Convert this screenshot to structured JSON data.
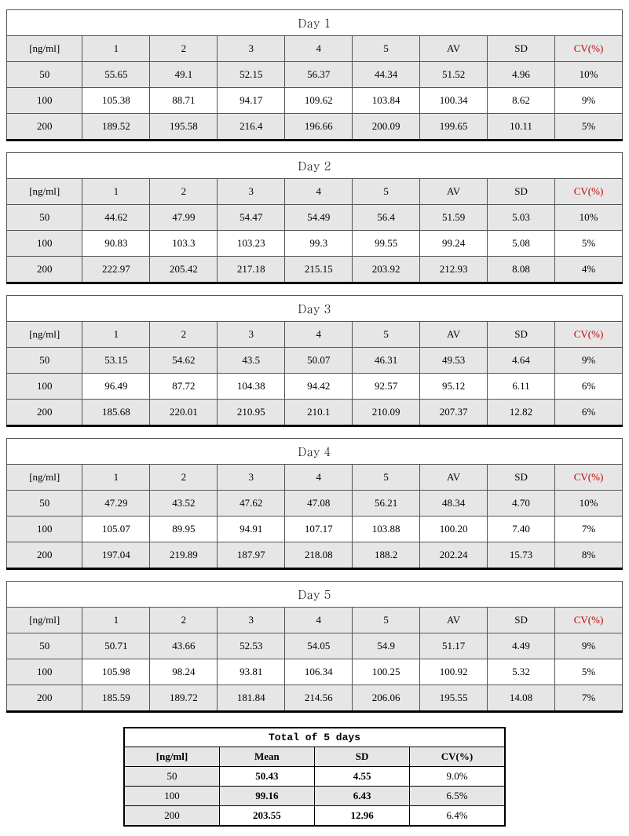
{
  "columns": [
    "[ng/ml]",
    "1",
    "2",
    "3",
    "4",
    "5",
    "AV",
    "SD",
    "CV(%)"
  ],
  "row_labels": [
    "50",
    "100",
    "200"
  ],
  "shading": [
    true,
    false,
    true
  ],
  "days": [
    {
      "title": "Day 1",
      "rows": [
        [
          "55.65",
          "49.1",
          "52.15",
          "56.37",
          "44.34",
          "51.52",
          "4.96",
          "10%"
        ],
        [
          "105.38",
          "88.71",
          "94.17",
          "109.62",
          "103.84",
          "100.34",
          "8.62",
          "9%"
        ],
        [
          "189.52",
          "195.58",
          "216.4",
          "196.66",
          "200.09",
          "199.65",
          "10.11",
          "5%"
        ]
      ]
    },
    {
      "title": "Day 2",
      "rows": [
        [
          "44.62",
          "47.99",
          "54.47",
          "54.49",
          "56.4",
          "51.59",
          "5.03",
          "10%"
        ],
        [
          "90.83",
          "103.3",
          "103.23",
          "99.3",
          "99.55",
          "99.24",
          "5.08",
          "5%"
        ],
        [
          "222.97",
          "205.42",
          "217.18",
          "215.15",
          "203.92",
          "212.93",
          "8.08",
          "4%"
        ]
      ]
    },
    {
      "title": "Day 3",
      "rows": [
        [
          "53.15",
          "54.62",
          "43.5",
          "50.07",
          "46.31",
          "49.53",
          "4.64",
          "9%"
        ],
        [
          "96.49",
          "87.72",
          "104.38",
          "94.42",
          "92.57",
          "95.12",
          "6.11",
          "6%"
        ],
        [
          "185.68",
          "220.01",
          "210.95",
          "210.1",
          "210.09",
          "207.37",
          "12.82",
          "6%"
        ]
      ]
    },
    {
      "title": "Day 4",
      "rows": [
        [
          "47.29",
          "43.52",
          "47.62",
          "47.08",
          "56.21",
          "48.34",
          "4.70",
          "10%"
        ],
        [
          "105.07",
          "89.95",
          "94.91",
          "107.17",
          "103.88",
          "100.20",
          "7.40",
          "7%"
        ],
        [
          "197.04",
          "219.89",
          "187.97",
          "218.08",
          "188.2",
          "202.24",
          "15.73",
          "8%"
        ]
      ]
    },
    {
      "title": "Day 5",
      "rows": [
        [
          "50.71",
          "43.66",
          "52.53",
          "54.05",
          "54.9",
          "51.17",
          "4.49",
          "9%"
        ],
        [
          "105.98",
          "98.24",
          "93.81",
          "106.34",
          "100.25",
          "100.92",
          "5.32",
          "5%"
        ],
        [
          "185.59",
          "189.72",
          "181.84",
          "214.56",
          "206.06",
          "195.55",
          "14.08",
          "7%"
        ]
      ]
    }
  ],
  "summary": {
    "title": "Total of 5 days",
    "columns": [
      "[ng/ml]",
      "Mean",
      "SD",
      "CV(%)"
    ],
    "rows": [
      {
        "label": "50",
        "mean": "50.43",
        "sd": "4.55",
        "cv": "9.0%",
        "shaded": false
      },
      {
        "label": "100",
        "mean": "99.16",
        "sd": "6.43",
        "cv": "6.5%",
        "shaded": true
      },
      {
        "label": "200",
        "mean": "203.55",
        "sd": "12.96",
        "cv": "6.4%",
        "shaded": false
      }
    ]
  },
  "style": {
    "header_bg": "#e6e6e6",
    "cv_color": "#c00000",
    "border_color": "#000000",
    "font_family": "Times New Roman, Batang, serif"
  }
}
